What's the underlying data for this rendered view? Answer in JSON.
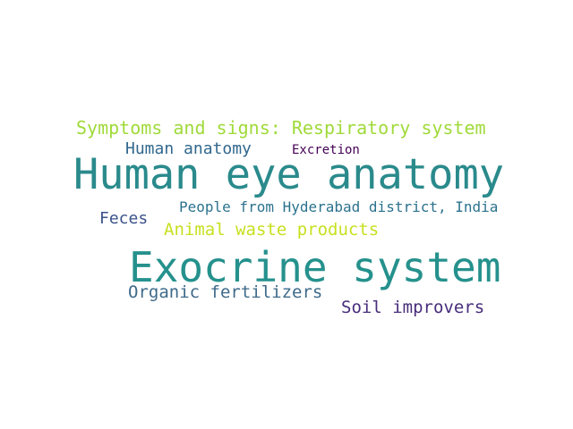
{
  "background_color": "#ffffff",
  "words": [
    {
      "text": "Symptoms and signs: Respiratory system",
      "color": "#a0da39"
    },
    {
      "text": "Human anatomy",
      "color": "#31688e"
    },
    {
      "text": "Excretion",
      "color": "#440154"
    },
    {
      "text": "Human eye anatomy",
      "color": "#2a8a8c"
    },
    {
      "text": "People from Hyderabad district, India",
      "color": "#2c728e"
    },
    {
      "text": "Feces",
      "color": "#3b528b"
    },
    {
      "text": "Animal waste products",
      "color": "#c8e020"
    },
    {
      "text": "Exocrine system",
      "color": "#25918d"
    },
    {
      "text": "Organic fertilizers",
      "color": "#3e6a8a"
    },
    {
      "text": "Soil improvers",
      "color": "#472d7b"
    }
  ]
}
